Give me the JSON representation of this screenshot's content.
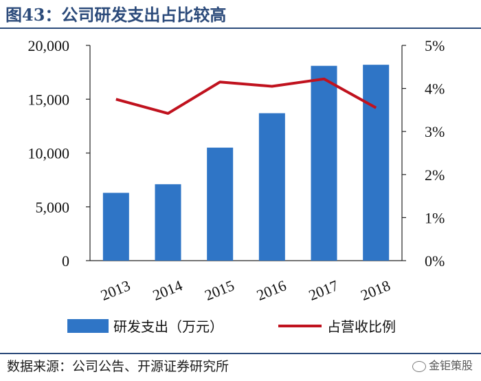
{
  "header": {
    "title": "图43：公司研发支出占比较高"
  },
  "footer": {
    "source": "数据来源：公司公告、开源证券研究所",
    "watermark": "金钜策股"
  },
  "colors": {
    "bar": "#2f75c6",
    "line": "#c0121e",
    "title": "#2b4a7a"
  },
  "chart_data": {
    "type": "bar+line",
    "title": "",
    "categories": [
      "2013",
      "2014",
      "2015",
      "2016",
      "2017",
      "2018"
    ],
    "series": [
      {
        "name": "研发支出（万元）",
        "type": "bar",
        "axis": "left",
        "values": [
          6300,
          7100,
          10500,
          13700,
          18100,
          18200
        ]
      },
      {
        "name": "占营收比例",
        "type": "line",
        "axis": "right",
        "values": [
          3.75,
          3.42,
          4.15,
          4.05,
          4.22,
          3.55
        ]
      }
    ],
    "y_left": {
      "range": [
        0,
        20000
      ],
      "ticks": [
        "0",
        "5,000",
        "10,000",
        "15,000",
        "20,000"
      ],
      "tick_values": [
        0,
        5000,
        10000,
        15000,
        20000
      ]
    },
    "y_right": {
      "range": [
        0,
        5
      ],
      "ticks": [
        "0%",
        "1%",
        "2%",
        "3%",
        "4%",
        "5%"
      ],
      "tick_values": [
        0,
        1,
        2,
        3,
        4,
        5
      ]
    },
    "grid": false,
    "legend": "bottom"
  }
}
